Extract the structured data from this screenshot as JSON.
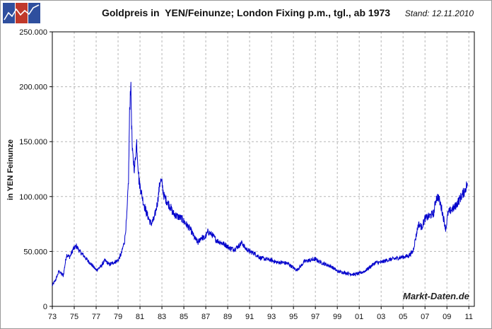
{
  "chart_data": {
    "type": "line",
    "title": "Goldpreis in  YEN/Feinunze; London Fixing p.m., tgl., ab 1973",
    "stand": "Stand: 12.11.2010",
    "ylabel": "in YEN Feinunze",
    "xlabel": "",
    "watermark": "Markt-Daten.de",
    "xlim": [
      1973,
      2011.5
    ],
    "ylim": [
      0,
      250000
    ],
    "grid": true,
    "line_color": "#0000cc",
    "x_ticks": [
      {
        "value": 1973,
        "label": "73"
      },
      {
        "value": 1975,
        "label": "75"
      },
      {
        "value": 1977,
        "label": "77"
      },
      {
        "value": 1979,
        "label": "79"
      },
      {
        "value": 1981,
        "label": "81"
      },
      {
        "value": 1983,
        "label": "83"
      },
      {
        "value": 1985,
        "label": "85"
      },
      {
        "value": 1987,
        "label": "87"
      },
      {
        "value": 1989,
        "label": "89"
      },
      {
        "value": 1991,
        "label": "91"
      },
      {
        "value": 1993,
        "label": "93"
      },
      {
        "value": 1995,
        "label": "95"
      },
      {
        "value": 1997,
        "label": "97"
      },
      {
        "value": 1999,
        "label": "99"
      },
      {
        "value": 2001,
        "label": "01"
      },
      {
        "value": 2003,
        "label": "03"
      },
      {
        "value": 2005,
        "label": "05"
      },
      {
        "value": 2007,
        "label": "07"
      },
      {
        "value": 2009,
        "label": "09"
      },
      {
        "value": 2011,
        "label": "11"
      }
    ],
    "y_ticks": [
      {
        "value": 0,
        "label": "0"
      },
      {
        "value": 50000,
        "label": "50.000"
      },
      {
        "value": 100000,
        "label": "100.000"
      },
      {
        "value": 150000,
        "label": "150.000"
      },
      {
        "value": 200000,
        "label": "200.000"
      },
      {
        "value": 250000,
        "label": "250.000"
      }
    ],
    "series": [
      {
        "x": [
          1973.0,
          1973.3,
          1973.6,
          1974.0,
          1974.3,
          1974.6,
          1974.9,
          1975.2,
          1975.5,
          1975.8,
          1976.2,
          1976.6,
          1977.0,
          1977.4,
          1977.8,
          1978.2,
          1978.6,
          1979.0,
          1979.3,
          1979.6,
          1979.8,
          1979.95,
          1980.05,
          1980.15,
          1980.3,
          1980.5,
          1980.7,
          1980.9,
          1981.1,
          1981.3,
          1981.6,
          1982.0,
          1982.3,
          1982.6,
          1982.85,
          1983.0,
          1983.2,
          1983.5,
          1983.8,
          1984.0,
          1984.4,
          1984.8,
          1985.2,
          1985.6,
          1986.0,
          1986.3,
          1986.6,
          1986.9,
          1987.2,
          1987.6,
          1988.0,
          1988.4,
          1988.8,
          1989.2,
          1989.6,
          1990.0,
          1990.3,
          1990.6,
          1991.0,
          1991.5,
          1992.0,
          1992.5,
          1993.0,
          1993.5,
          1994.0,
          1994.5,
          1995.0,
          1995.3,
          1995.7,
          1996.0,
          1996.5,
          1997.0,
          1997.5,
          1998.0,
          1998.5,
          1999.0,
          1999.5,
          2000.0,
          2000.5,
          2001.0,
          2001.5,
          2002.0,
          2002.5,
          2003.0,
          2003.5,
          2004.0,
          2004.5,
          2005.0,
          2005.5,
          2005.9,
          2006.2,
          2006.4,
          2006.7,
          2007.0,
          2007.4,
          2007.8,
          2008.0,
          2008.2,
          2008.5,
          2008.8,
          2008.9,
          2009.1,
          2009.4,
          2009.7,
          2010.0,
          2010.3,
          2010.6,
          2010.87
        ],
        "values": [
          19000,
          24000,
          32000,
          28000,
          47000,
          45000,
          52000,
          55000,
          50000,
          47000,
          42000,
          38000,
          33000,
          36000,
          42000,
          38000,
          40000,
          42000,
          48000,
          60000,
          82000,
          115000,
          175000,
          205000,
          140000,
          125000,
          150000,
          115000,
          105000,
          95000,
          85000,
          75000,
          80000,
          95000,
          115000,
          112000,
          100000,
          95000,
          90000,
          85000,
          82000,
          80000,
          75000,
          70000,
          62000,
          58000,
          63000,
          62000,
          68000,
          65000,
          60000,
          58000,
          56000,
          53000,
          52000,
          55000,
          58000,
          53000,
          50000,
          48000,
          44000,
          43000,
          42000,
          40000,
          40000,
          39000,
          35000,
          33000,
          37000,
          41000,
          42000,
          43000,
          40000,
          38000,
          36000,
          32000,
          31000,
          30000,
          29000,
          30000,
          32000,
          36000,
          40000,
          40000,
          42000,
          43000,
          44000,
          45000,
          46000,
          50000,
          65000,
          75000,
          72000,
          80000,
          82000,
          85000,
          98000,
          100000,
          90000,
          75000,
          70000,
          85000,
          88000,
          90000,
          95000,
          100000,
          105000,
          112000
        ]
      }
    ]
  },
  "logo": {
    "colors": [
      "#2f4f9e",
      "#c0392b",
      "#2f4f9e"
    ],
    "icon": "chart-logo-icon"
  }
}
